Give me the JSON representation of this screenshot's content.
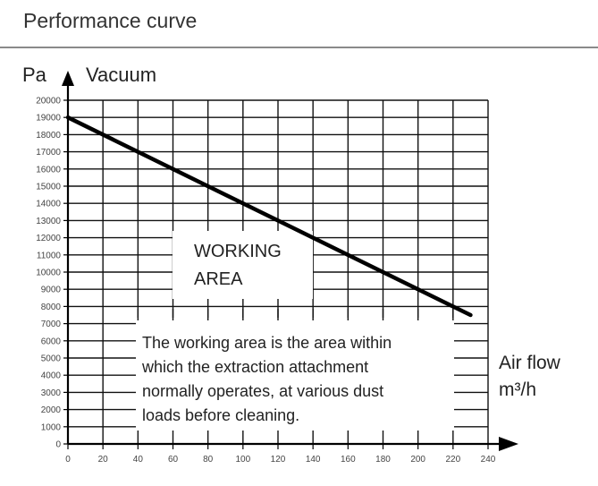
{
  "header": {
    "title": "Performance curve"
  },
  "chart_data": {
    "type": "line",
    "title": "Performance curve",
    "ylabel_unit": "Pa",
    "ylabel": "Vacuum",
    "xlabel": "Air flow",
    "xlabel_unit": "m³/h",
    "xlim": [
      0,
      240
    ],
    "ylim": [
      0,
      20000
    ],
    "x_ticks": [
      0,
      20,
      40,
      60,
      80,
      100,
      120,
      140,
      160,
      180,
      200,
      220,
      240
    ],
    "y_ticks": [
      0,
      1000,
      2000,
      3000,
      4000,
      5000,
      6000,
      7000,
      8000,
      9000,
      10000,
      11000,
      12000,
      13000,
      14000,
      15000,
      16000,
      17000,
      18000,
      19000,
      20000
    ],
    "grid": true,
    "series": [
      {
        "x": [
          0,
          230
        ],
        "y": [
          19000,
          7500
        ]
      }
    ],
    "annotations": {
      "working_area": [
        "WORKING",
        "AREA"
      ],
      "note": [
        "The working area is the area within",
        "which the extraction attachment",
        "normally operates, at various dust",
        "loads before cleaning."
      ]
    }
  },
  "colors": {
    "curve": "#000000",
    "grid": "#111111",
    "axis": "#000000",
    "background": "#ffffff"
  }
}
